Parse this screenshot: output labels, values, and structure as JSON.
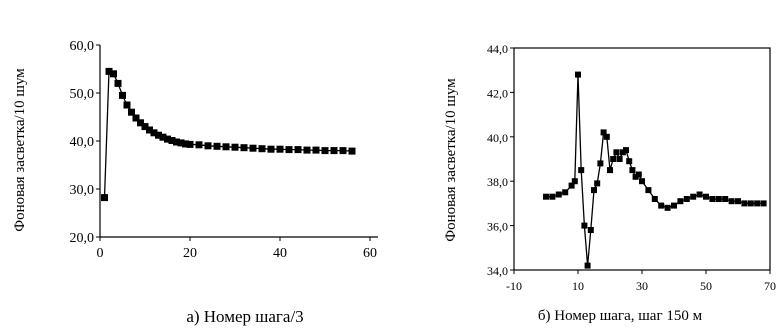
{
  "chart_data": [
    {
      "type": "scatter",
      "ylabel": "Фоновая засветка/10 шум",
      "caption": "а) Номер шага/3",
      "xlim": [
        0,
        60
      ],
      "ylim": [
        20,
        60
      ],
      "xticks": [
        "0",
        "20",
        "40",
        "60"
      ],
      "yticks": [
        "20,0",
        "30,0",
        "40,0",
        "50,0",
        "60,0"
      ],
      "grid": false,
      "series": [
        {
          "color": "#000000",
          "x": [
            1,
            2,
            3,
            4,
            5,
            6,
            7,
            8,
            9,
            10,
            11,
            12,
            13,
            14,
            15,
            16,
            17,
            18,
            19,
            20,
            22,
            24,
            26,
            28,
            30,
            32,
            34,
            36,
            38,
            40,
            42,
            44,
            46,
            48,
            50,
            52,
            54,
            56
          ],
          "y": [
            28.2,
            54.5,
            54.0,
            52.0,
            49.5,
            47.5,
            46.0,
            44.8,
            43.8,
            43.0,
            42.3,
            41.7,
            41.2,
            40.8,
            40.4,
            40.1,
            39.8,
            39.6,
            39.4,
            39.3,
            39.2,
            39.0,
            38.9,
            38.8,
            38.7,
            38.6,
            38.5,
            38.4,
            38.3,
            38.3,
            38.2,
            38.2,
            38.1,
            38.1,
            38.0,
            38.0,
            38.0,
            37.9
          ]
        }
      ]
    },
    {
      "type": "line",
      "ylabel": "Фоновая засветка/10 шум",
      "caption": "б) Номер шага, шаг 150 м",
      "xlim": [
        -10,
        70
      ],
      "ylim": [
        34,
        44
      ],
      "xticks": [
        "-10",
        "10",
        "30",
        "50",
        "70"
      ],
      "yticks": [
        "34,0",
        "36,0",
        "38,0",
        "40,0",
        "42,0",
        "44,0"
      ],
      "grid": false,
      "series": [
        {
          "color": "#000000",
          "x": [
            0,
            2,
            4,
            6,
            8,
            9,
            10,
            11,
            12,
            13,
            14,
            15,
            16,
            17,
            18,
            19,
            20,
            21,
            22,
            23,
            24,
            25,
            26,
            27,
            28,
            29,
            30,
            32,
            34,
            36,
            38,
            40,
            42,
            44,
            46,
            48,
            50,
            52,
            54,
            56,
            58,
            60,
            62,
            64,
            66,
            68
          ],
          "y": [
            37.3,
            37.3,
            37.4,
            37.5,
            37.8,
            38.0,
            42.8,
            38.5,
            36.0,
            34.2,
            35.8,
            37.6,
            37.9,
            38.8,
            40.2,
            40.0,
            38.5,
            39.0,
            39.3,
            39.0,
            39.3,
            39.4,
            38.9,
            38.5,
            38.2,
            38.3,
            38.0,
            37.6,
            37.2,
            36.9,
            36.8,
            36.9,
            37.1,
            37.2,
            37.3,
            37.4,
            37.3,
            37.2,
            37.2,
            37.2,
            37.1,
            37.1,
            37.0,
            37.0,
            37.0,
            37.0
          ]
        }
      ]
    }
  ]
}
